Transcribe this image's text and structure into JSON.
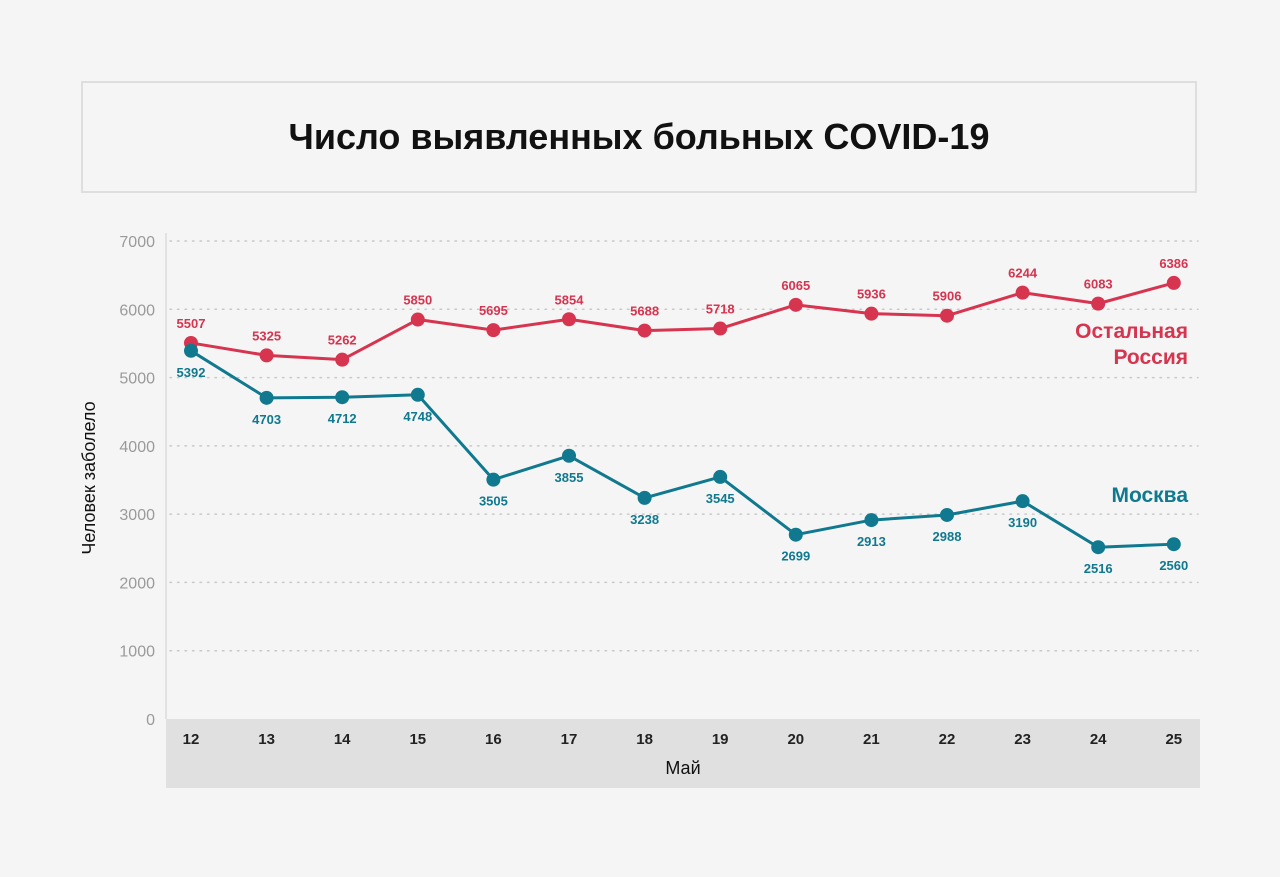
{
  "title": "Число выявленных больных COVID-19",
  "colors": {
    "rest": "#d6344f",
    "moscow": "#10798f",
    "grid": "#c9c9c9",
    "xband": "#e0e0e0"
  },
  "chart_data": {
    "type": "line",
    "title": "Число выявленных больных COVID-19",
    "xlabel": "Май",
    "ylabel": "Человек заболело",
    "ylim": [
      0,
      7000
    ],
    "yticks": [
      0,
      1000,
      2000,
      3000,
      4000,
      5000,
      6000,
      7000
    ],
    "grid": true,
    "categories": [
      "12",
      "13",
      "14",
      "15",
      "16",
      "17",
      "18",
      "19",
      "20",
      "21",
      "22",
      "23",
      "24",
      "25"
    ],
    "series": [
      {
        "name": "Остальная Россия",
        "name_lines": [
          "Остальная",
          "Россия"
        ],
        "color": "#d6344f",
        "values": [
          5507,
          5325,
          5262,
          5850,
          5695,
          5854,
          5688,
          5718,
          6065,
          5936,
          5906,
          6244,
          6083,
          6386
        ]
      },
      {
        "name": "Москва",
        "name_lines": [
          "Москва"
        ],
        "color": "#10798f",
        "values": [
          5392,
          4703,
          4712,
          4748,
          3505,
          3855,
          3238,
          3545,
          2699,
          2913,
          2988,
          3190,
          2516,
          2560
        ]
      }
    ]
  }
}
